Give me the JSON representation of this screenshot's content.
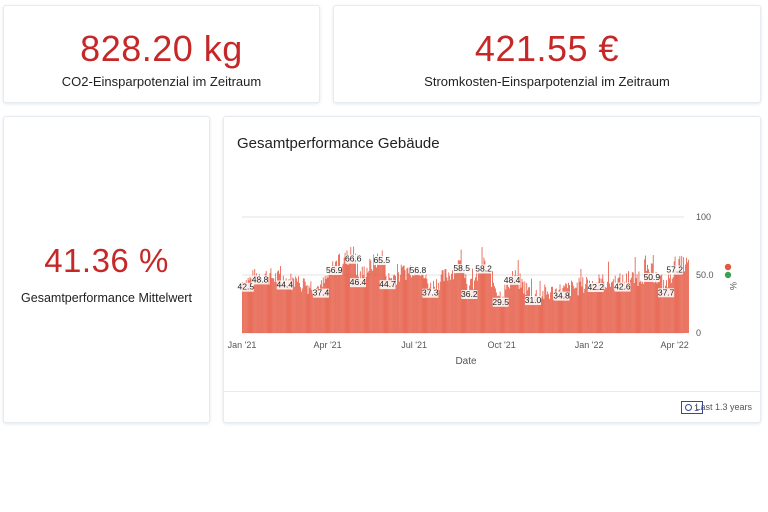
{
  "co2": {
    "value": "828.20 kg",
    "label": "CO2-Einsparpotenzial im Zeitraum"
  },
  "cost": {
    "value": "421.55 €",
    "label": "Stromkosten-Einsparpotenzial im Zeitraum"
  },
  "performance": {
    "value": "41.36 %",
    "label": "Gesamtperformance Mittelwert"
  },
  "chart_panel": {
    "title": "Gesamtperformance Gebäude",
    "time_badge": "1",
    "time_range": "Last 1.3 years"
  },
  "colors": {
    "accent": "#c62828",
    "bar": "#e4563f",
    "legend_red": "#e4563f",
    "legend_green": "#3ea055"
  },
  "chart_data": {
    "type": "bar",
    "title": "Gesamtperformance Gebäude",
    "xlabel": "Date",
    "ylabel": "%",
    "ylim": [
      0,
      100
    ],
    "yticks": [
      "0",
      "50.0",
      "100"
    ],
    "xticks": [
      "Jan '21",
      "Apr '21",
      "Jul '21",
      "Oct '21",
      "Jan '22",
      "Apr '22"
    ],
    "xrange": [
      "2021-01-01",
      "2022-04-15"
    ],
    "grid": true,
    "legend_placement": "right",
    "series": [
      {
        "color": "#e4563f",
        "data_labels": [
          {
            "x": "2021-01-05",
            "y": 42.5,
            "label": "42.5"
          },
          {
            "x": "2021-01-20",
            "y": 48.8,
            "label": "48.8"
          },
          {
            "x": "2021-02-15",
            "y": 44.4,
            "label": "44.4"
          },
          {
            "x": "2021-03-25",
            "y": 37.4,
            "label": "37.4"
          },
          {
            "x": "2021-04-08",
            "y": 56.9,
            "label": "56.9"
          },
          {
            "x": "2021-04-28",
            "y": 66.6,
            "label": "66.6"
          },
          {
            "x": "2021-05-03",
            "y": 46.4,
            "label": "46.4"
          },
          {
            "x": "2021-05-28",
            "y": 65.5,
            "label": "65.5"
          },
          {
            "x": "2021-06-03",
            "y": 44.7,
            "label": "44.7"
          },
          {
            "x": "2021-07-05",
            "y": 56.8,
            "label": "56.8"
          },
          {
            "x": "2021-07-18",
            "y": 37.3,
            "label": "37.3"
          },
          {
            "x": "2021-08-20",
            "y": 58.5,
            "label": "58.5"
          },
          {
            "x": "2021-08-28",
            "y": 36.2,
            "label": "36.2"
          },
          {
            "x": "2021-09-12",
            "y": 58.2,
            "label": "58.2"
          },
          {
            "x": "2021-09-30",
            "y": 29.5,
            "label": "29.5"
          },
          {
            "x": "2021-10-12",
            "y": 48.4,
            "label": "48.4"
          },
          {
            "x": "2021-11-03",
            "y": 31.0,
            "label": "31.0"
          },
          {
            "x": "2021-12-03",
            "y": 34.8,
            "label": "34.8"
          },
          {
            "x": "2022-01-08",
            "y": 42.2,
            "label": "42.2"
          },
          {
            "x": "2022-02-05",
            "y": 42.6,
            "label": "42.6"
          },
          {
            "x": "2022-03-08",
            "y": 50.9,
            "label": "50.9"
          },
          {
            "x": "2022-03-23",
            "y": 37.7,
            "label": "37.7"
          },
          {
            "x": "2022-04-01",
            "y": 57.2,
            "label": "57.2"
          }
        ]
      }
    ]
  }
}
